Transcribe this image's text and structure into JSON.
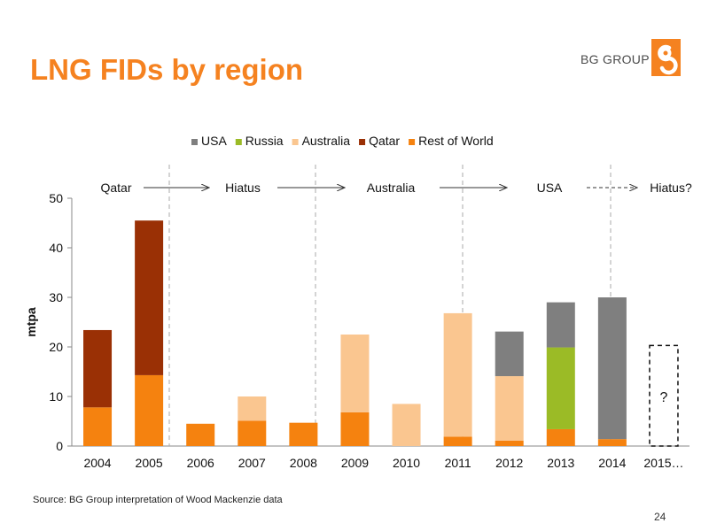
{
  "title": "LNG FIDs by region",
  "brand": "BG GROUP",
  "logo_icon": "bg-logo-icon",
  "source": "Source: BG Group interpretation of Wood Mackenzie data",
  "page_number": "24",
  "colors": {
    "accent": "#f58220",
    "USA": "#7f7f7f",
    "Russia": "#9bbb26",
    "Australia": "#fac690",
    "Qatar": "#9a3005",
    "Rest of World": "#f5820f"
  },
  "chart_data": {
    "type": "bar",
    "stacked": true,
    "categories": [
      "2004",
      "2005",
      "2006",
      "2007",
      "2008",
      "2009",
      "2010",
      "2011",
      "2012",
      "2013",
      "2014",
      "2015…"
    ],
    "series": [
      {
        "name": "Rest of World",
        "values": [
          7.8,
          14.3,
          4.5,
          5.1,
          4.7,
          6.8,
          0,
          1.9,
          1.1,
          3.4,
          1.4,
          0
        ]
      },
      {
        "name": "Qatar",
        "values": [
          15.6,
          31.2,
          0,
          0,
          0,
          0,
          0,
          0,
          0,
          0,
          0,
          0
        ]
      },
      {
        "name": "Australia",
        "values": [
          0,
          0,
          0,
          4.9,
          0,
          15.7,
          8.5,
          24.9,
          13.0,
          0,
          0,
          0
        ]
      },
      {
        "name": "Russia",
        "values": [
          0,
          0,
          0,
          0,
          0,
          0,
          0,
          0,
          0,
          16.5,
          0,
          0
        ]
      },
      {
        "name": "USA",
        "values": [
          0,
          0,
          0,
          0,
          0,
          0,
          0,
          0,
          9.0,
          9.1,
          28.6,
          0
        ]
      }
    ],
    "legend": [
      "USA",
      "Russia",
      "Australia",
      "Qatar",
      "Rest of World"
    ],
    "legend_position": "top",
    "ylabel": "mtpa",
    "xlabel": "",
    "ylim": [
      0,
      50
    ],
    "yticks": [
      0,
      10,
      20,
      30,
      40,
      50
    ],
    "grid": false,
    "phases": [
      "Qatar",
      "Hiatus",
      "Australia",
      "USA",
      "Hiatus?"
    ],
    "placeholder_label": "?"
  }
}
